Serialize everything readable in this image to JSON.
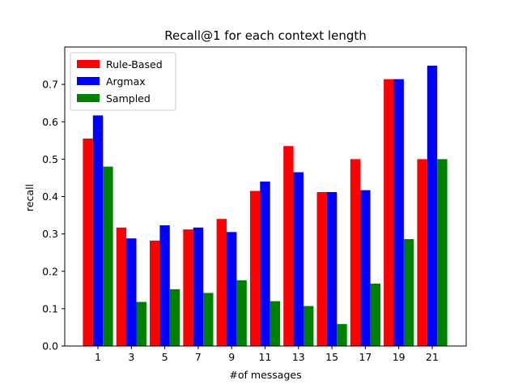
{
  "chart_data": {
    "type": "bar",
    "title": "Recall@1 for each context length",
    "xlabel": "#of messages",
    "ylabel": "recall",
    "categories": [
      "1",
      "3",
      "5",
      "7",
      "9",
      "11",
      "13",
      "15",
      "17",
      "19",
      "21"
    ],
    "series": [
      {
        "name": "Rule-Based",
        "color": "#ff0000",
        "values": [
          0.555,
          0.317,
          0.282,
          0.312,
          0.34,
          0.415,
          0.535,
          0.412,
          0.5,
          0.714,
          0.5
        ]
      },
      {
        "name": "Argmax",
        "color": "#0000ff",
        "values": [
          0.617,
          0.288,
          0.323,
          0.317,
          0.305,
          0.44,
          0.465,
          0.412,
          0.417,
          0.714,
          0.75
        ]
      },
      {
        "name": "Sampled",
        "color": "#008000",
        "values": [
          0.48,
          0.118,
          0.152,
          0.142,
          0.176,
          0.12,
          0.107,
          0.059,
          0.167,
          0.286,
          0.5
        ]
      }
    ],
    "ylim": [
      0,
      0.8
    ],
    "yticks": [
      "0.0",
      "0.1",
      "0.2",
      "0.3",
      "0.4",
      "0.5",
      "0.6",
      "0.7"
    ],
    "grid": false,
    "legend_position": "upper-left"
  }
}
